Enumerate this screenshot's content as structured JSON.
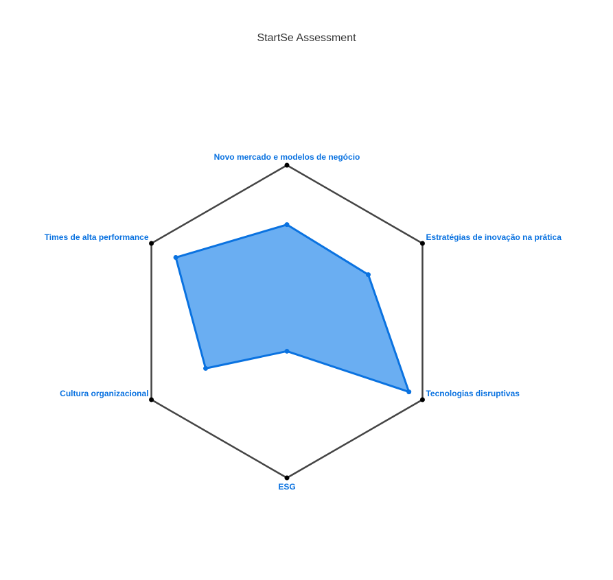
{
  "chart_data": {
    "type": "radar",
    "title": "StartSe Assessment",
    "categories": [
      "Novo mercado e modelos de negócio",
      "Estratégias de inovação na prática",
      "Tecnologias disruptivas",
      "ESG",
      "Cultura organizacional",
      "Times de alta performance"
    ],
    "series": [
      {
        "values": [
          0.62,
          0.6,
          0.9,
          0.19,
          0.6,
          0.82
        ]
      }
    ],
    "range": [
      0,
      1
    ],
    "grid": "outer-hexagon-only",
    "colors": {
      "series_line": "#0a72e0",
      "series_fill": "#6aaef2",
      "frame": "#444444",
      "label": "#0a72e0"
    }
  }
}
